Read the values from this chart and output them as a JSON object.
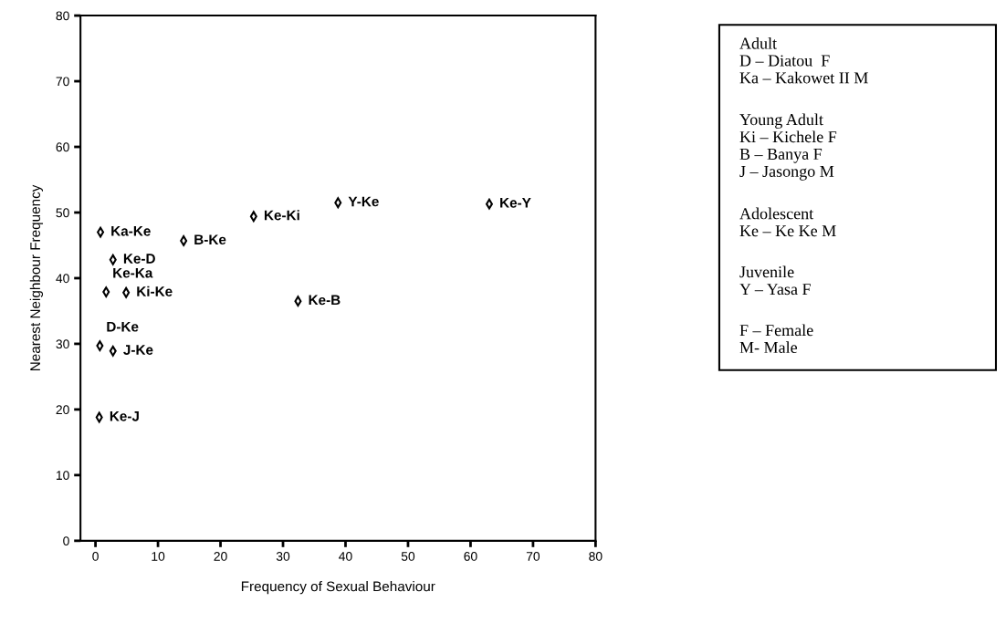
{
  "chart_data": {
    "type": "scatter",
    "xlabel": "Frequency of Sexual Behaviour",
    "ylabel": "Nearest Neighbour Frequency",
    "x": [
      0.8,
      2.8,
      14.1,
      25.3,
      38.8,
      63.0,
      32.4,
      1.7,
      4.9,
      0.7,
      2.8,
      0.6
    ],
    "values": [
      47,
      42.8,
      45.7,
      49.4,
      51.5,
      51.3,
      36.5,
      37.9,
      37.8,
      29.7,
      28.9,
      18.8
    ],
    "color": "#000000",
    "marker": "diamond",
    "xlim": [
      -2.4,
      80
    ],
    "ylim": [
      0,
      80
    ],
    "xticks": [
      0,
      10,
      20,
      30,
      40,
      50,
      60,
      70,
      80
    ],
    "yticks": [
      0,
      10,
      20,
      30,
      40,
      50,
      60,
      70,
      80
    ],
    "grid": false,
    "annotations": [
      {
        "text": "Ka-Ke",
        "x": 0.8,
        "y": 47
      },
      {
        "text": "Ke-D",
        "x": 2.8,
        "y": 42.8
      },
      {
        "text": "B-Ke",
        "x": 14.1,
        "y": 45.7
      },
      {
        "text": "Ke-Ki",
        "x": 25.3,
        "y": 49.4
      },
      {
        "text": "Y-Ke",
        "x": 38.8,
        "y": 51.5
      },
      {
        "text": "Ke-Y",
        "x": 63.0,
        "y": 51.3
      },
      {
        "text": "Ke-B",
        "x": 32.4,
        "y": 36.5
      },
      {
        "text": "Ke-Ka",
        "x": 1.7,
        "y": 37.9
      },
      {
        "text": "Ki-Ke",
        "x": 4.9,
        "y": 37.8
      },
      {
        "text": "D-Ke",
        "x": 0.7,
        "y": 29.7
      },
      {
        "text": "J-Ke",
        "x": 2.8,
        "y": 28.9
      },
      {
        "text": "Ke-J",
        "x": 0.6,
        "y": 18.8
      },
      "Adult\nD – Diatou  F\nKa – Kakowet II M",
      "Young Adult\nKi – Kichele F\nB – Banya F\nJ – Jasongo M",
      "Adolescent\nKe – Ke Ke M",
      "Juvenile\nY – Yasa F",
      "F – Female\nM- Male"
    ]
  }
}
